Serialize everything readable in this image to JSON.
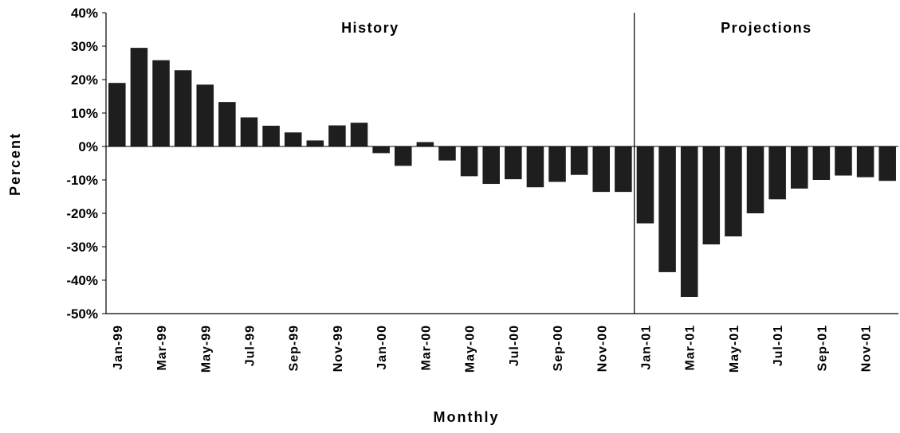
{
  "chart_data": {
    "type": "bar",
    "title": "",
    "xlabel": "Monthly",
    "ylabel": "Percent",
    "ylim": [
      -50,
      40
    ],
    "yticks": [
      40,
      30,
      20,
      10,
      0,
      -10,
      -20,
      -30,
      -40,
      -50
    ],
    "ytick_labels": [
      "40%",
      "30%",
      "20%",
      "10%",
      "0%",
      "-10%",
      "-20%",
      "-30%",
      "-40%",
      "-50%"
    ],
    "grid": false,
    "legend": "none",
    "bar_color": "#1e1e1e",
    "categories": [
      "Jan-99",
      "Feb-99",
      "Mar-99",
      "Apr-99",
      "May-99",
      "Jun-99",
      "Jul-99",
      "Aug-99",
      "Sep-99",
      "Oct-99",
      "Nov-99",
      "Dec-99",
      "Jan-00",
      "Feb-00",
      "Mar-00",
      "Apr-00",
      "May-00",
      "Jun-00",
      "Jul-00",
      "Aug-00",
      "Sep-00",
      "Oct-00",
      "Nov-00",
      "Dec-00",
      "Jan-01",
      "Feb-01",
      "Mar-01",
      "Apr-01",
      "May-01",
      "Jun-01",
      "Jul-01",
      "Aug-01",
      "Sep-01",
      "Oct-01",
      "Nov-01",
      "Dec-01"
    ],
    "tick_labels_shown": [
      "Jan-99",
      "Mar-99",
      "May-99",
      "Jul-99",
      "Sep-99",
      "Nov-99",
      "Jan-00",
      "Mar-00",
      "May-00",
      "Jul-00",
      "Sep-00",
      "Nov-00",
      "Jan-01",
      "Mar-01",
      "May-01",
      "Jul-01",
      "Sep-01",
      "Nov-01"
    ],
    "values": [
      19,
      29.5,
      25.8,
      22.8,
      18.5,
      13.3,
      8.7,
      6.2,
      4.2,
      1.8,
      6.3,
      7.1,
      -2,
      -5.8,
      1.3,
      -4.2,
      -8.9,
      -11.2,
      -9.8,
      -12.2,
      -10.6,
      -8.5,
      -13.6,
      -13.6,
      -23,
      -37.6,
      -45,
      -29.3,
      -26.9,
      -20,
      -15.8,
      -12.6,
      -10,
      -8.7,
      -9.2,
      -10.3
    ],
    "annotations": [
      {
        "text": "History",
        "span": [
          "Jan-99",
          "Dec-00"
        ]
      },
      {
        "text": "Projections",
        "span": [
          "Jan-01",
          "Dec-01"
        ]
      }
    ],
    "divider_between": [
      "Dec-00",
      "Jan-01"
    ]
  }
}
